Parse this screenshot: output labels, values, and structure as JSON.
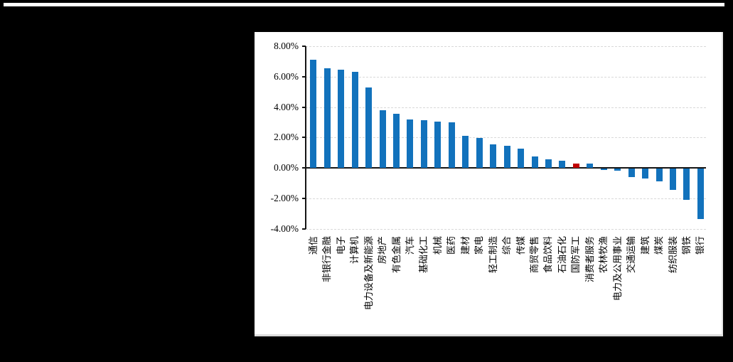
{
  "page": {
    "background_color": "#000000",
    "panel_background": "#ffffff"
  },
  "chart_data": {
    "type": "bar",
    "title": "",
    "xlabel": "",
    "ylabel": "",
    "unit": "%",
    "categories": [
      "通信",
      "非银行金融",
      "电子",
      "计算机",
      "电力设备及新能源",
      "房地产",
      "有色金属",
      "汽车",
      "基础化工",
      "机械",
      "医药",
      "建材",
      "家电",
      "轻工制造",
      "综合",
      "传媒",
      "商贸零售",
      "食品饮料",
      "石油石化",
      "国防军工",
      "消费者服务",
      "农林牧渔",
      "电力及公用事业",
      "交通运输",
      "建筑",
      "煤炭",
      "纺织服装",
      "钢铁",
      "银行"
    ],
    "values": [
      7.1,
      6.55,
      6.45,
      6.3,
      5.3,
      3.8,
      3.55,
      3.2,
      3.15,
      3.05,
      3.0,
      2.1,
      1.95,
      1.55,
      1.45,
      1.25,
      0.75,
      0.55,
      0.45,
      0.3,
      0.27,
      -0.08,
      -0.16,
      -0.55,
      -0.66,
      -0.83,
      -1.42,
      -2.05,
      -3.3
    ],
    "bar_color": "#1272BC",
    "highlight": {
      "index": 19,
      "color": "#C00000"
    },
    "ylim": [
      -4,
      8
    ],
    "ytick_values": [
      8,
      6,
      4,
      2,
      0,
      -2,
      -4
    ],
    "ytick_labels": [
      "8.00%",
      "6.00%",
      "4.00%",
      "2.00%",
      "0.00%",
      "-2.00%",
      "-4.00%"
    ],
    "grid": "horizontal-dashed",
    "gridline_color": "#d9d9d9",
    "axis_color": "#141414",
    "legend": "none"
  }
}
